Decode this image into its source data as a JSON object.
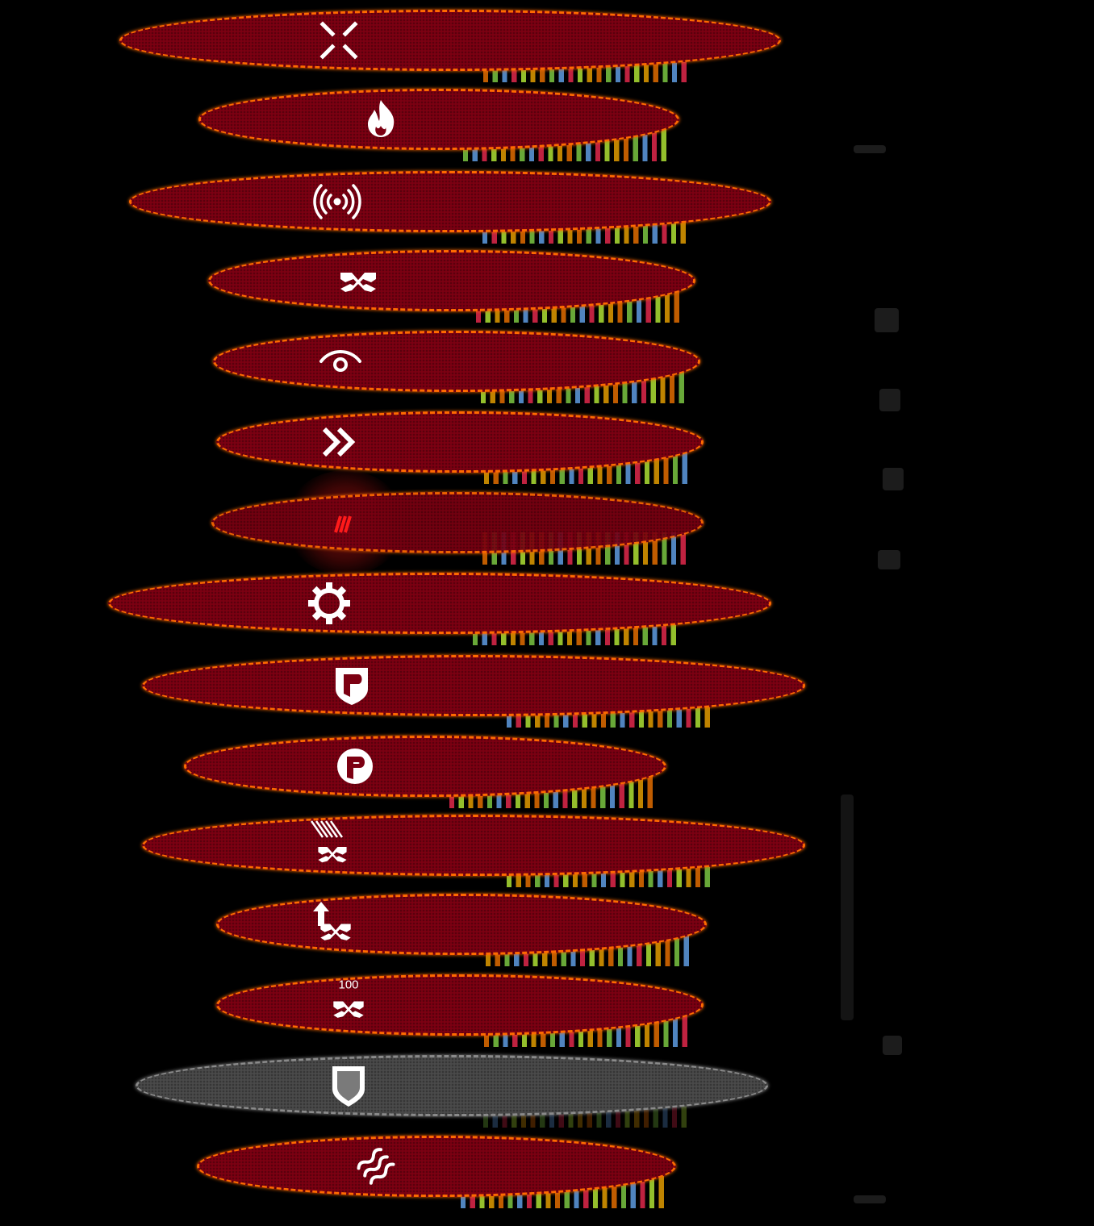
{
  "colors": {
    "ellipse_fill": "#7c0012",
    "ellipse_edge": "#ff6a00",
    "inactive_fill": "#4a4a4a",
    "inactive_edge": "#8a8a8a",
    "icon": "#ffffff"
  },
  "badges": {
    "explosive_count": "100"
  },
  "buttons": [
    {
      "icon": "crosshair-icon",
      "state": "active"
    },
    {
      "icon": "flame-icon",
      "state": "active"
    },
    {
      "icon": "signal-waves-icon",
      "state": "active"
    },
    {
      "icon": "crossed-arms-icon",
      "state": "active"
    },
    {
      "icon": "eye-icon",
      "state": "active"
    },
    {
      "icon": "double-chevron-icon",
      "state": "active"
    },
    {
      "icon": "claw-slash-icon",
      "state": "active"
    },
    {
      "icon": "cog-icon",
      "state": "active"
    },
    {
      "icon": "shield-p-icon",
      "state": "active"
    },
    {
      "icon": "p-badge-icon",
      "state": "active"
    },
    {
      "icon": "rain-crossed-arms-icon",
      "state": "active"
    },
    {
      "icon": "upgrade-crossed-arms-icon",
      "state": "active"
    },
    {
      "icon": "crossed-arms-100-icon",
      "state": "active"
    },
    {
      "icon": "shield-icon",
      "state": "inactive"
    },
    {
      "icon": "heat-waves-icon",
      "state": "active"
    }
  ]
}
